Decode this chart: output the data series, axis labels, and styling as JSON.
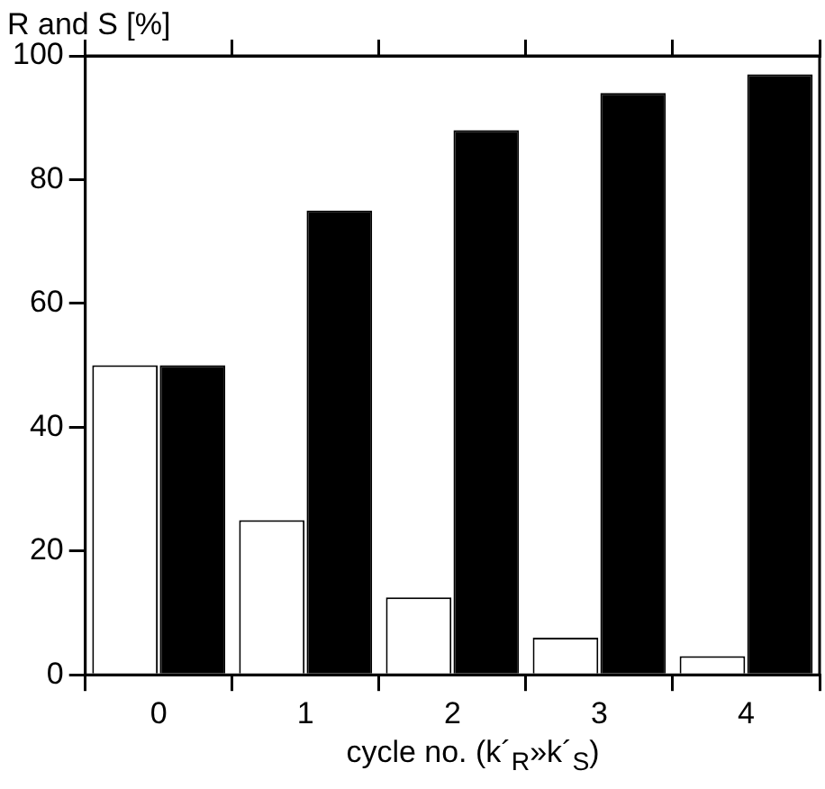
{
  "chart_data": {
    "type": "bar",
    "ylabel": "R and S [%]",
    "xlabel": "cycle no. (k´$_{R}$»k´$_{S}$)",
    "categories": [
      "0",
      "1",
      "2",
      "3",
      "4"
    ],
    "series": [
      {
        "color": "#ffffff",
        "values": [
          50,
          25,
          12.5,
          6,
          3
        ]
      },
      {
        "color": "#000000",
        "values": [
          50,
          75,
          88,
          94,
          97
        ]
      }
    ],
    "ylim": [
      0,
      100
    ],
    "yticks": [
      0,
      20,
      40,
      60,
      80,
      100
    ],
    "grid": false,
    "legend": false
  }
}
